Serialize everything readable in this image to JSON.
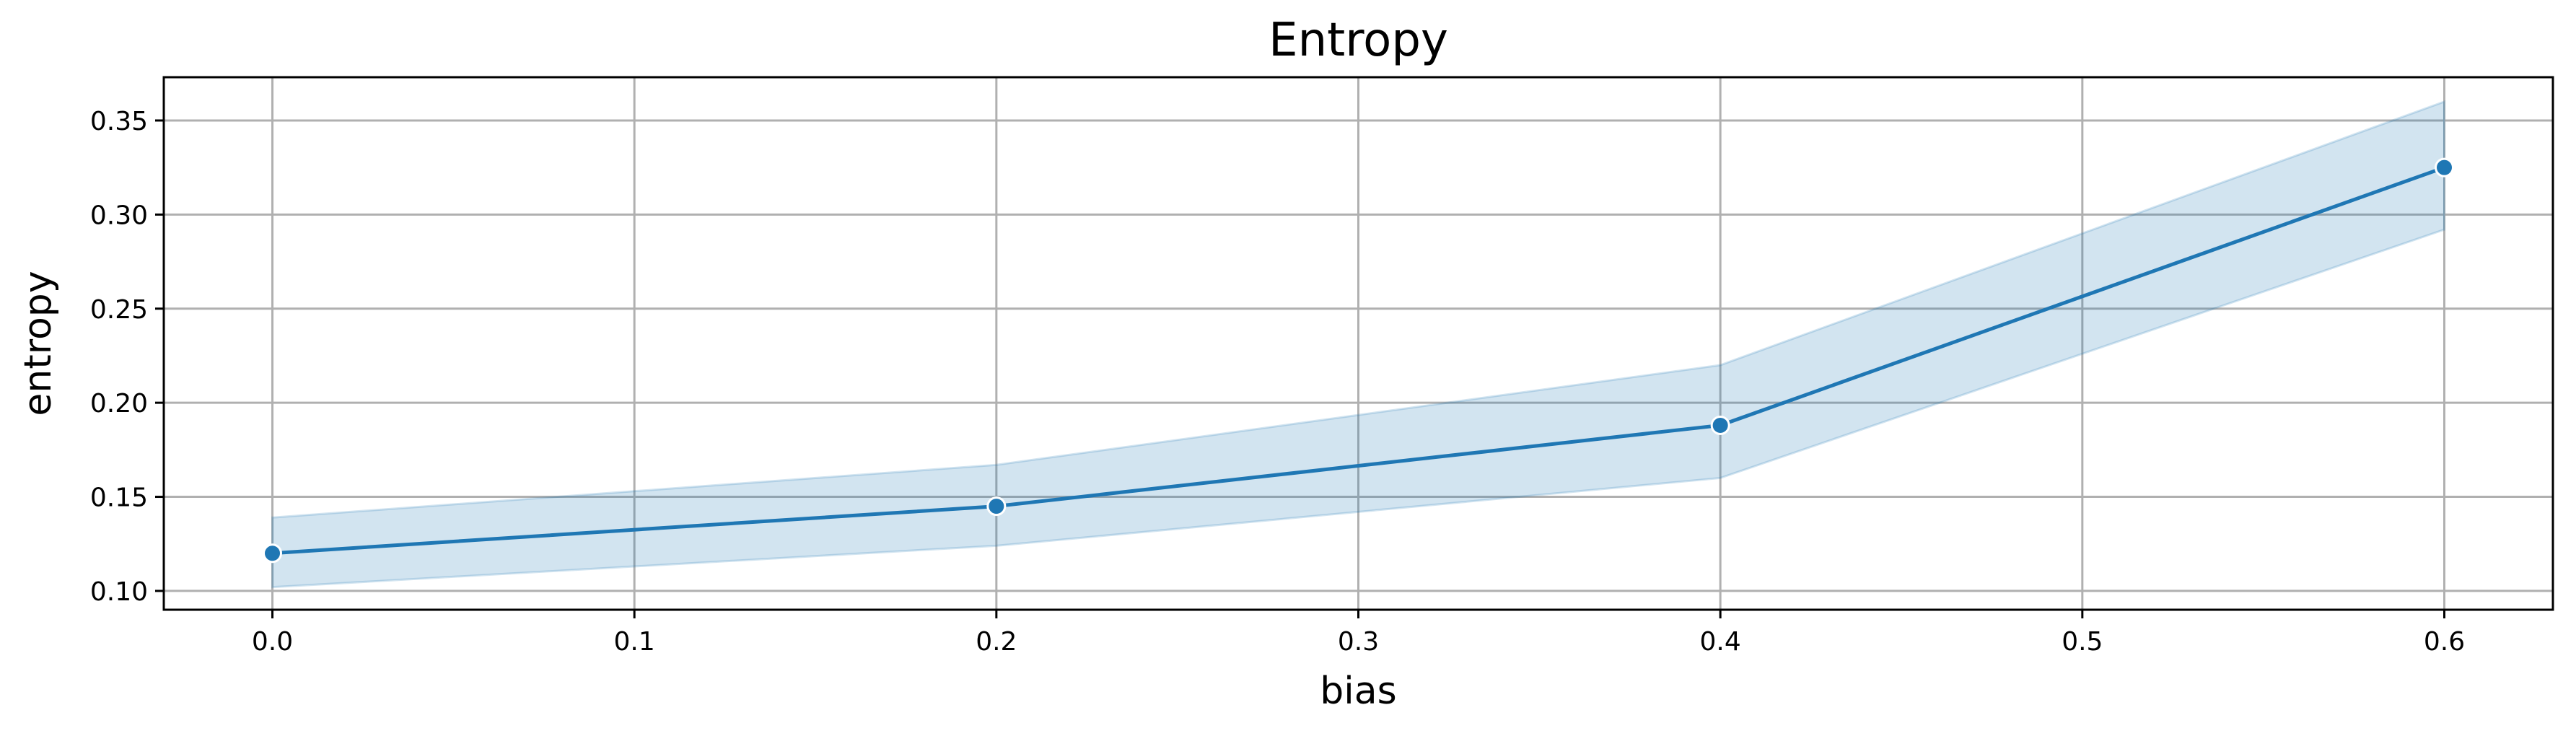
{
  "chart_data": {
    "type": "line",
    "title": "Entropy",
    "xlabel": "bias",
    "ylabel": "entropy",
    "xlim": [
      -0.03,
      0.63
    ],
    "ylim": [
      0.09,
      0.373
    ],
    "x_ticks": [
      "0.0",
      "0.1",
      "0.2",
      "0.3",
      "0.4",
      "0.5",
      "0.6"
    ],
    "y_ticks": [
      "0.10",
      "0.15",
      "0.20",
      "0.25",
      "0.30",
      "0.35"
    ],
    "grid": true,
    "legend": "none",
    "series": [
      {
        "x": [
          0.0,
          0.2,
          0.4,
          0.6
        ],
        "y": [
          0.12,
          0.145,
          0.188,
          0.325
        ],
        "ci_lower": [
          0.102,
          0.124,
          0.16,
          0.292
        ],
        "ci_upper": [
          0.139,
          0.167,
          0.22,
          0.36
        ],
        "color": "#1f77b4",
        "marker": "circle"
      }
    ],
    "colors": {
      "line": "#1f77b4",
      "band": "#1f77b4",
      "grid": "#b0b0b0",
      "axes": "#000000"
    }
  }
}
